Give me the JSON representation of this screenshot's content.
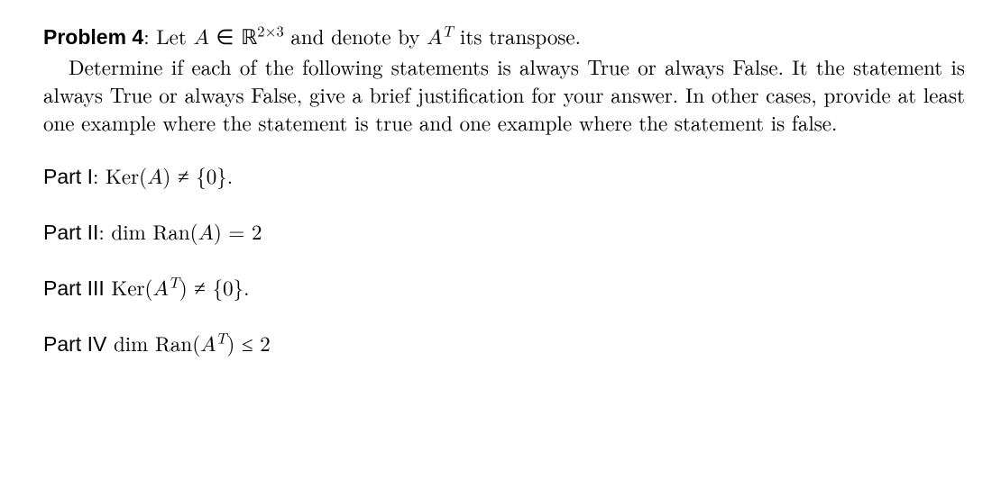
{
  "typography": {
    "body_font": "Latin Modern Roman / Computer Modern serif",
    "label_font": "Arial / Helvetica sans-serif",
    "font_size_pt": 17,
    "line_height": 1.35,
    "text_color": "#000000",
    "background_color": "#ffffff"
  },
  "problem": {
    "label": "Problem 4",
    "intro_line1_pre": ": Let ",
    "intro_A": "A",
    "intro_in": " ∈ ",
    "intro_R": "ℝ",
    "intro_sup": "2×3",
    "intro_line1_mid": " and denote by ",
    "intro_AT_A": "A",
    "intro_AT_T": "T",
    "intro_line1_post": " its transpose.",
    "intro_para": "Determine if each of the following statements is always True or always False. It the statement is always True or always False, give a brief justification for your answer. In other cases, provide at least one example where the statement is true and one example where the statement is false."
  },
  "parts": {
    "p1": {
      "label": "Part I",
      "colon": ": ",
      "expr_pre": "Ker(",
      "expr_A": "A",
      "expr_post": ") ≠ {0}."
    },
    "p2": {
      "label": "Part II",
      "colon": ": ",
      "expr_pre": "dim Ran(",
      "expr_A": "A",
      "expr_post": ") = 2"
    },
    "p3": {
      "label": "Part III",
      "colon": " ",
      "expr_pre": "Ker(",
      "expr_A": "A",
      "expr_T": "T",
      "expr_post": ") ≠ {0}."
    },
    "p4": {
      "label": "Part IV",
      "colon": " ",
      "expr_pre": "dim Ran(",
      "expr_A": "A",
      "expr_T": "T",
      "expr_post": ") ≤ 2"
    }
  }
}
